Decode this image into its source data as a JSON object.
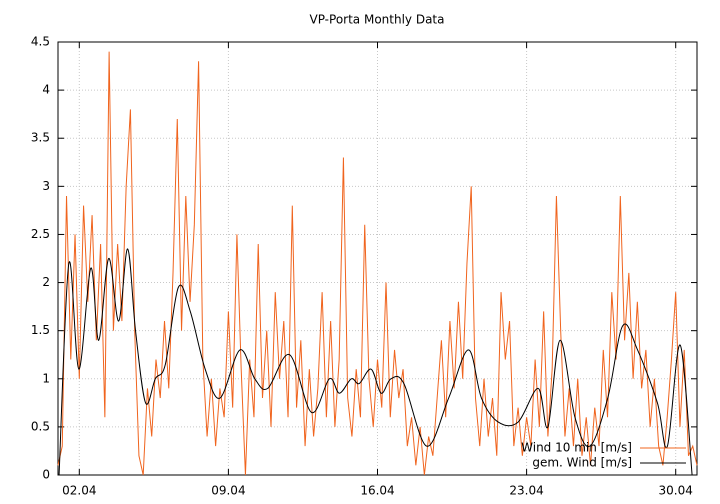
{
  "chart_data": {
    "type": "line",
    "title": "VP-Porta Monthly Data",
    "xlim": [
      1,
      31
    ],
    "xticks": [
      {
        "value": 2,
        "label": "02.04"
      },
      {
        "value": 9,
        "label": "09.04"
      },
      {
        "value": 16,
        "label": "16.04"
      },
      {
        "value": 23,
        "label": "23.04"
      },
      {
        "value": 30,
        "label": "30.04"
      }
    ],
    "ylim": [
      0,
      4.5
    ],
    "yticks": [
      0,
      0.5,
      1,
      1.5,
      2,
      2.5,
      3,
      3.5,
      4,
      4.5
    ],
    "grid": true,
    "legend": "bottom-right",
    "series": [
      {
        "name": "Wind 10 min [m/s]",
        "color": "#f0641e",
        "smooth": false,
        "x": [
          1,
          1.2,
          1.4,
          1.6,
          1.8,
          2,
          2.2,
          2.4,
          2.6,
          2.8,
          3,
          3.2,
          3.4,
          3.6,
          3.8,
          4,
          4.2,
          4.4,
          4.6,
          4.8,
          5,
          5.2,
          5.4,
          5.6,
          5.8,
          6,
          6.2,
          6.4,
          6.6,
          6.8,
          7,
          7.2,
          7.4,
          7.6,
          7.8,
          8,
          8.2,
          8.4,
          8.6,
          8.8,
          9,
          9.2,
          9.4,
          9.6,
          9.8,
          10,
          10.2,
          10.4,
          10.6,
          10.8,
          11,
          11.2,
          11.4,
          11.6,
          11.8,
          12,
          12.2,
          12.4,
          12.6,
          12.8,
          13,
          13.2,
          13.4,
          13.6,
          13.8,
          14,
          14.2,
          14.4,
          14.6,
          14.8,
          15,
          15.2,
          15.4,
          15.6,
          15.8,
          16,
          16.2,
          16.4,
          16.6,
          16.8,
          17,
          17.2,
          17.4,
          17.6,
          17.8,
          18,
          18.2,
          18.4,
          18.6,
          18.8,
          19,
          19.2,
          19.4,
          19.6,
          19.8,
          20,
          20.2,
          20.4,
          20.6,
          20.8,
          21,
          21.2,
          21.4,
          21.6,
          21.8,
          22,
          22.2,
          22.4,
          22.6,
          22.8,
          23,
          23.2,
          23.4,
          23.6,
          23.8,
          24,
          24.2,
          24.4,
          24.6,
          24.8,
          25,
          25.2,
          25.4,
          25.6,
          25.8,
          26,
          26.2,
          26.4,
          26.6,
          26.8,
          27,
          27.2,
          27.4,
          27.6,
          27.8,
          28,
          28.2,
          28.4,
          28.6,
          28.8,
          29,
          29.2,
          29.4,
          29.6,
          29.8,
          30,
          30.2,
          30.4,
          30.6,
          30.8,
          31
        ],
        "values": [
          0.1,
          0.3,
          2.9,
          1.2,
          2.5,
          1.0,
          2.8,
          1.8,
          2.7,
          1.4,
          2.4,
          0.6,
          4.4,
          1.5,
          2.4,
          1.6,
          3.0,
          3.8,
          1.5,
          0.2,
          0,
          0.9,
          0.4,
          1.2,
          0.8,
          1.6,
          0.9,
          2.1,
          3.7,
          1.5,
          2.9,
          1.8,
          2.6,
          4.3,
          1.2,
          0.4,
          1.0,
          0.3,
          0.9,
          0.6,
          1.7,
          0.7,
          2.5,
          1.1,
          0,
          1.2,
          0.6,
          2.4,
          0.8,
          1.5,
          0.5,
          1.9,
          1.0,
          1.6,
          0.6,
          2.8,
          0.7,
          1.4,
          0.3,
          1.1,
          0.4,
          0.9,
          1.9,
          0.6,
          1.6,
          0.5,
          1.2,
          3.3,
          0.8,
          0.4,
          1.1,
          0.6,
          2.6,
          1.0,
          0.5,
          1.2,
          0.7,
          2.0,
          0.6,
          1.3,
          0.8,
          1.1,
          0.3,
          0.6,
          0.1,
          0.5,
          0,
          0.4,
          0.2,
          0.8,
          1.4,
          0.6,
          1.6,
          0.9,
          1.8,
          1.0,
          2.2,
          3.0,
          0.8,
          0.3,
          1.0,
          0.4,
          0.8,
          0.2,
          1.9,
          1.2,
          1.6,
          0.3,
          0.7,
          0.2,
          0.6,
          0.3,
          1.2,
          0.5,
          1.7,
          0.4,
          1.1,
          2.9,
          1.5,
          0.4,
          0.9,
          0.3,
          1.0,
          0.2,
          0.6,
          0.1,
          0.7,
          0.3,
          1.3,
          0.6,
          1.9,
          1.2,
          2.9,
          1.4,
          2.1,
          1.0,
          1.8,
          0.9,
          1.3,
          0.5,
          1.0,
          0.3,
          0.1,
          0.6,
          1.2,
          1.9,
          0.5,
          1.3,
          0.2,
          0.3,
          0.1
        ]
      },
      {
        "name": "gem. Wind [m/s]",
        "color": "#000000",
        "smooth": true,
        "x": [
          1.05,
          1.51,
          1.98,
          2.54,
          2.91,
          3.38,
          3.85,
          4.27,
          4.64,
          5.11,
          5.57,
          6.04,
          6.65,
          7.21,
          7.91,
          8.61,
          9.54,
          10.24,
          10.85,
          11.87,
          12.9,
          13.74,
          14.21,
          14.77,
          15.14,
          15.7,
          16.17,
          16.63,
          17.24,
          18.31,
          19.34,
          20.27,
          20.88,
          21.67,
          22.6,
          23.54,
          24.0,
          24.57,
          25.27,
          25.97,
          26.81,
          27.51,
          28.21,
          29.14,
          29.61,
          30.21,
          30.77
        ],
        "values": [
          0,
          2.2,
          1.1,
          2.15,
          1.4,
          2.25,
          1.6,
          2.35,
          1.5,
          0.75,
          1.0,
          1.15,
          1.95,
          1.7,
          1.1,
          0.8,
          1.3,
          1.0,
          0.9,
          1.25,
          0.65,
          1.0,
          0.85,
          1.0,
          0.95,
          1.1,
          0.85,
          1.0,
          0.95,
          0.3,
          0.8,
          1.3,
          0.8,
          0.55,
          0.55,
          0.9,
          0.5,
          1.4,
          0.6,
          0.3,
          0.8,
          1.55,
          1.3,
          0.75,
          0.3,
          1.35,
          0
        ]
      }
    ]
  }
}
